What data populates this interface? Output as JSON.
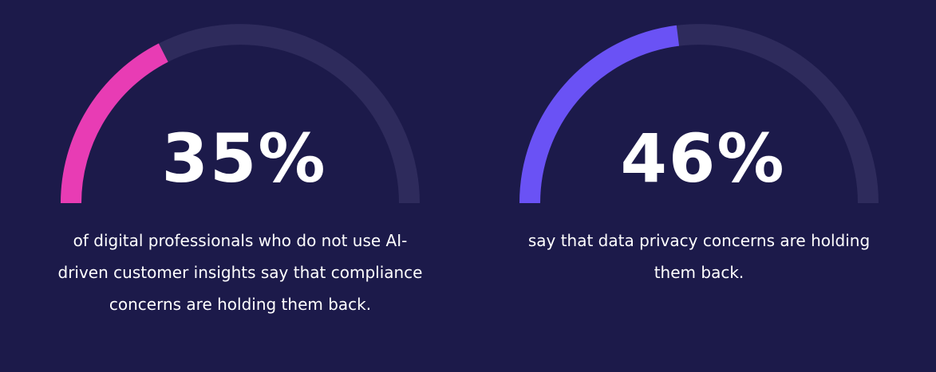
{
  "chart_data": [
    {
      "type": "gauge",
      "values": [
        35
      ],
      "value_labels": [
        "35%"
      ],
      "ylim": [
        0,
        100
      ],
      "color": "#e83cb4",
      "track_color": "#2e2b5c",
      "caption": "of digital professionals who do not use AI-driven customer insights say that compliance concerns are holding them back."
    },
    {
      "type": "gauge",
      "values": [
        46
      ],
      "value_labels": [
        "46%"
      ],
      "ylim": [
        0,
        100
      ],
      "color": "#6a52f5",
      "track_color": "#2e2b5c",
      "caption": "say that data privacy concerns are holding them back."
    }
  ]
}
